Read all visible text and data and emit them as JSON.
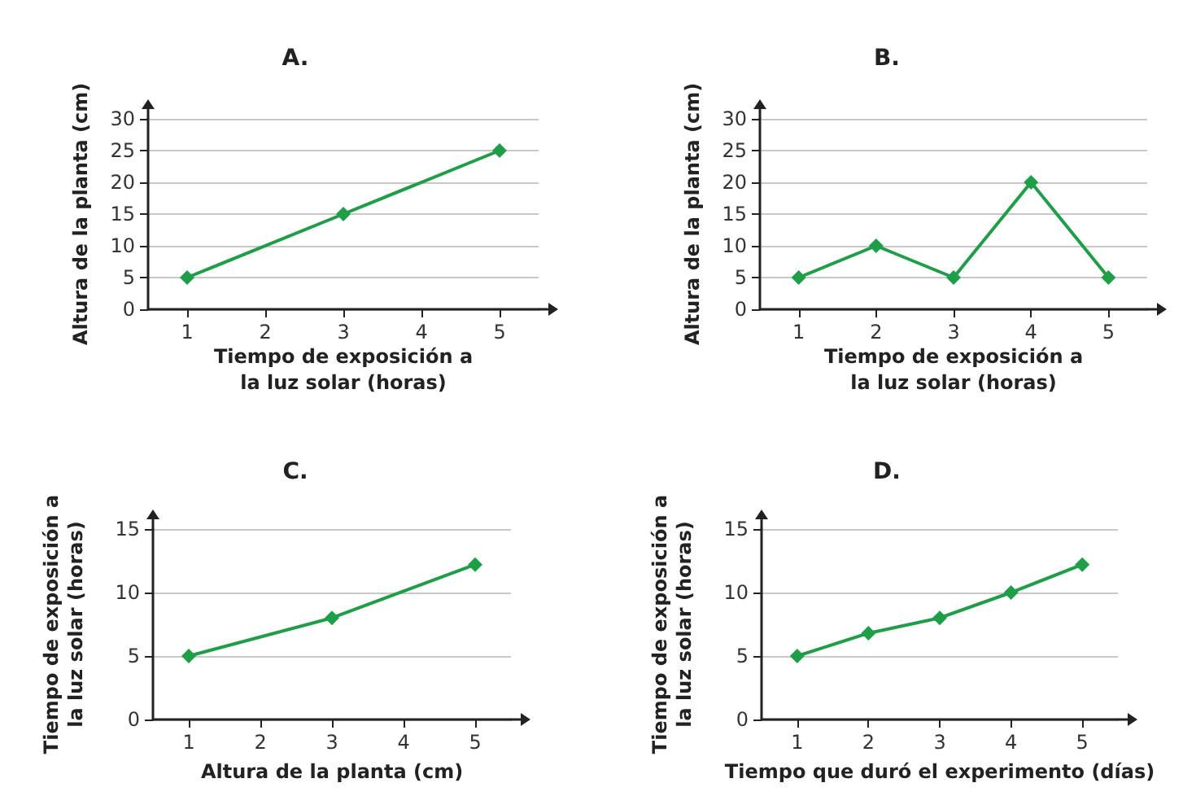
{
  "chart_data": [
    {
      "type": "line",
      "title": "A.",
      "xlabel": "Tiempo de exposición a la luz solar (horas)",
      "ylabel": "Altura de la planta (cm)",
      "x": [
        1,
        3,
        5
      ],
      "series": [
        {
          "color": "#1f9e48",
          "values": [
            5,
            15,
            25
          ]
        }
      ],
      "xlim": [
        0.5,
        5.5
      ],
      "xticks": [
        1,
        2,
        3,
        4,
        5
      ],
      "ylim": [
        0,
        30
      ],
      "yticks": [
        0,
        5,
        10,
        15,
        20,
        25,
        30
      ],
      "grid": "y",
      "legend": false,
      "marker": "diamond",
      "line_style": "solid"
    },
    {
      "type": "line",
      "title": "B.",
      "xlabel": "Tiempo de exposición a la luz solar (horas)",
      "ylabel": "Altura de la planta (cm)",
      "x": [
        1,
        2,
        3,
        4,
        5
      ],
      "series": [
        {
          "color": "#1f9e48",
          "values": [
            5,
            10,
            5,
            20,
            5
          ]
        }
      ],
      "xlim": [
        0.5,
        5.5
      ],
      "xticks": [
        1,
        2,
        3,
        4,
        5
      ],
      "ylim": [
        0,
        30
      ],
      "yticks": [
        0,
        5,
        10,
        15,
        20,
        25,
        30
      ],
      "grid": "y",
      "legend": false,
      "marker": "diamond",
      "line_style": "solid"
    },
    {
      "type": "line",
      "title": "C.",
      "xlabel": "Altura de la planta (cm)",
      "ylabel": "Tiempo de exposición a la luz solar (horas)",
      "x": [
        1,
        3,
        5
      ],
      "series": [
        {
          "color": "#1f9e48",
          "values": [
            5,
            8,
            12.2
          ]
        }
      ],
      "xlim": [
        0.5,
        5.5
      ],
      "xticks": [
        1,
        2,
        3,
        4,
        5
      ],
      "ylim": [
        0,
        15
      ],
      "yticks": [
        0,
        5,
        10,
        15
      ],
      "grid": "y",
      "legend": false,
      "marker": "diamond",
      "line_style": "solid"
    },
    {
      "type": "line",
      "title": "D.",
      "xlabel": "Tiempo que duró el experimento (días)",
      "ylabel": "Tiempo de exposición a la luz solar (horas)",
      "x": [
        1,
        2,
        3,
        4,
        5
      ],
      "series": [
        {
          "color": "#1f9e48",
          "values": [
            5,
            6.8,
            8,
            10,
            12.2
          ]
        }
      ],
      "xlim": [
        0.5,
        5.5
      ],
      "xticks": [
        1,
        2,
        3,
        4,
        5
      ],
      "ylim": [
        0,
        15
      ],
      "yticks": [
        0,
        5,
        10,
        15
      ],
      "grid": "y",
      "legend": false,
      "marker": "diamond",
      "line_style": "solid"
    }
  ]
}
